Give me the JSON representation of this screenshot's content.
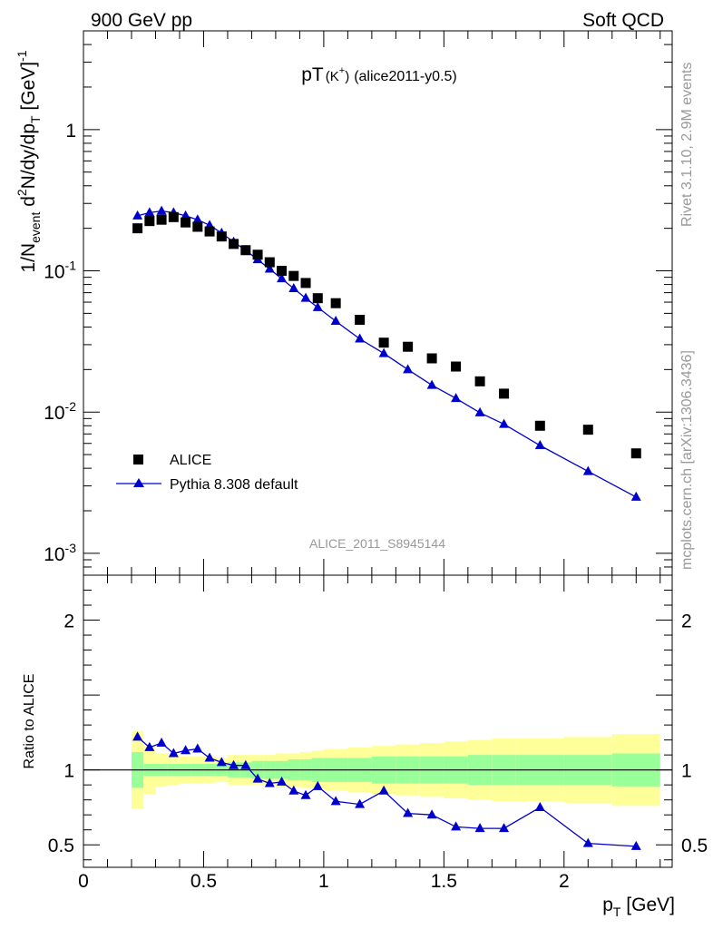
{
  "header": {
    "left": "900 GeV pp",
    "right": "Soft QCD"
  },
  "title": {
    "main": "pT",
    "paren": "(K",
    "sup": "+",
    "paren_close": ")",
    "tag": "(alice2011-y0.5)"
  },
  "side_text": {
    "rivet": "Rivet 3.1.10,  2.9M events",
    "mcplots": "mcplots.cern.ch [arXiv:1306.3436]"
  },
  "watermark": "ALICE_2011_S8945144",
  "main_ylabel": {
    "p1": "1/N",
    "s1": "event",
    "p2": " d",
    "sup2": "2",
    "p3": "N/dy/dp",
    "s3": "T",
    "p4": " [GeV]",
    "sup4": "-1"
  },
  "ratio_ylabel": "Ratio to ALICE",
  "xlabel": {
    "p": "p",
    "sub": "T",
    "unit": " [GeV]"
  },
  "legend": {
    "data_label": "ALICE",
    "mc_label": "Pythia 8.308 default"
  },
  "colors": {
    "data": "#000000",
    "mc": "#0000cc",
    "band_inner": "#99ff99",
    "band_outer": "#ffff99"
  },
  "chart_data": [
    {
      "type": "scatter",
      "yscale": "log",
      "xlim": [
        0,
        2.45
      ],
      "ylim": [
        0.0007,
        5
      ],
      "ytick_labels": [
        "10^-3",
        "10^-2",
        "10^-1",
        "1"
      ],
      "legend_position": "lower-left",
      "series": [
        {
          "name": "ALICE",
          "x": [
            0.225,
            0.275,
            0.325,
            0.375,
            0.425,
            0.475,
            0.525,
            0.575,
            0.625,
            0.675,
            0.725,
            0.775,
            0.825,
            0.875,
            0.925,
            0.975,
            1.05,
            1.15,
            1.25,
            1.35,
            1.45,
            1.55,
            1.65,
            1.75,
            1.9,
            2.1,
            2.3
          ],
          "values": [
            0.2,
            0.225,
            0.23,
            0.24,
            0.22,
            0.205,
            0.19,
            0.175,
            0.155,
            0.14,
            0.13,
            0.115,
            0.1,
            0.092,
            0.082,
            0.064,
            0.059,
            0.045,
            0.031,
            0.029,
            0.024,
            0.021,
            0.0165,
            0.0135,
            0.008,
            0.0075,
            0.0051
          ]
        },
        {
          "name": "Pythia 8.308 default",
          "x": [
            0.225,
            0.275,
            0.325,
            0.375,
            0.425,
            0.475,
            0.525,
            0.575,
            0.625,
            0.675,
            0.725,
            0.775,
            0.825,
            0.875,
            0.925,
            0.975,
            1.05,
            1.15,
            1.25,
            1.35,
            1.45,
            1.55,
            1.65,
            1.75,
            1.9,
            2.1,
            2.3
          ],
          "values": [
            0.245,
            0.258,
            0.265,
            0.258,
            0.245,
            0.23,
            0.21,
            0.185,
            0.16,
            0.14,
            0.12,
            0.103,
            0.088,
            0.075,
            0.064,
            0.055,
            0.044,
            0.033,
            0.026,
            0.02,
            0.0155,
            0.0125,
            0.0099,
            0.0082,
            0.0058,
            0.0038,
            0.0025
          ]
        }
      ]
    },
    {
      "type": "line",
      "xlim": [
        0,
        2.45
      ],
      "ylim": [
        0.35,
        2.3
      ],
      "ytick_labels": [
        "0.5",
        "1",
        "2"
      ],
      "xtick_labels": [
        "0",
        "0.5",
        "1",
        "1.5",
        "2"
      ],
      "reference_line": 1,
      "uncertainty_bands": {
        "bin_edges": [
          0.2,
          0.25,
          0.3,
          0.35,
          0.4,
          0.45,
          0.5,
          0.55,
          0.6,
          0.65,
          0.7,
          0.75,
          0.8,
          0.85,
          0.9,
          0.95,
          1.0,
          1.1,
          1.2,
          1.3,
          1.4,
          1.5,
          1.6,
          1.7,
          1.8,
          2.0,
          2.2,
          2.4
        ],
        "inner_halfwidth": [
          0.12,
          0.04,
          0.04,
          0.04,
          0.04,
          0.04,
          0.04,
          0.04,
          0.05,
          0.05,
          0.06,
          0.06,
          0.06,
          0.07,
          0.07,
          0.08,
          0.08,
          0.08,
          0.09,
          0.09,
          0.09,
          0.09,
          0.1,
          0.1,
          0.1,
          0.1,
          0.11
        ],
        "outer_halfwidth": [
          0.26,
          0.16,
          0.11,
          0.1,
          0.09,
          0.09,
          0.09,
          0.08,
          0.1,
          0.1,
          0.1,
          0.1,
          0.11,
          0.11,
          0.12,
          0.13,
          0.14,
          0.15,
          0.16,
          0.17,
          0.18,
          0.19,
          0.2,
          0.21,
          0.21,
          0.22,
          0.24
        ]
      },
      "series": [
        {
          "name": "Pythia 8.308 default",
          "x": [
            0.225,
            0.275,
            0.325,
            0.375,
            0.425,
            0.475,
            0.525,
            0.575,
            0.625,
            0.675,
            0.725,
            0.775,
            0.825,
            0.875,
            0.925,
            0.975,
            1.05,
            1.15,
            1.25,
            1.35,
            1.45,
            1.55,
            1.65,
            1.75,
            1.9,
            2.1,
            2.3
          ],
          "values": [
            1.22,
            1.15,
            1.18,
            1.11,
            1.13,
            1.14,
            1.08,
            1.05,
            1.03,
            1.03,
            0.94,
            0.91,
            0.92,
            0.86,
            0.83,
            0.89,
            0.79,
            0.77,
            0.86,
            0.71,
            0.7,
            0.62,
            0.61,
            0.61,
            0.75,
            0.51,
            0.49
          ]
        }
      ]
    }
  ]
}
